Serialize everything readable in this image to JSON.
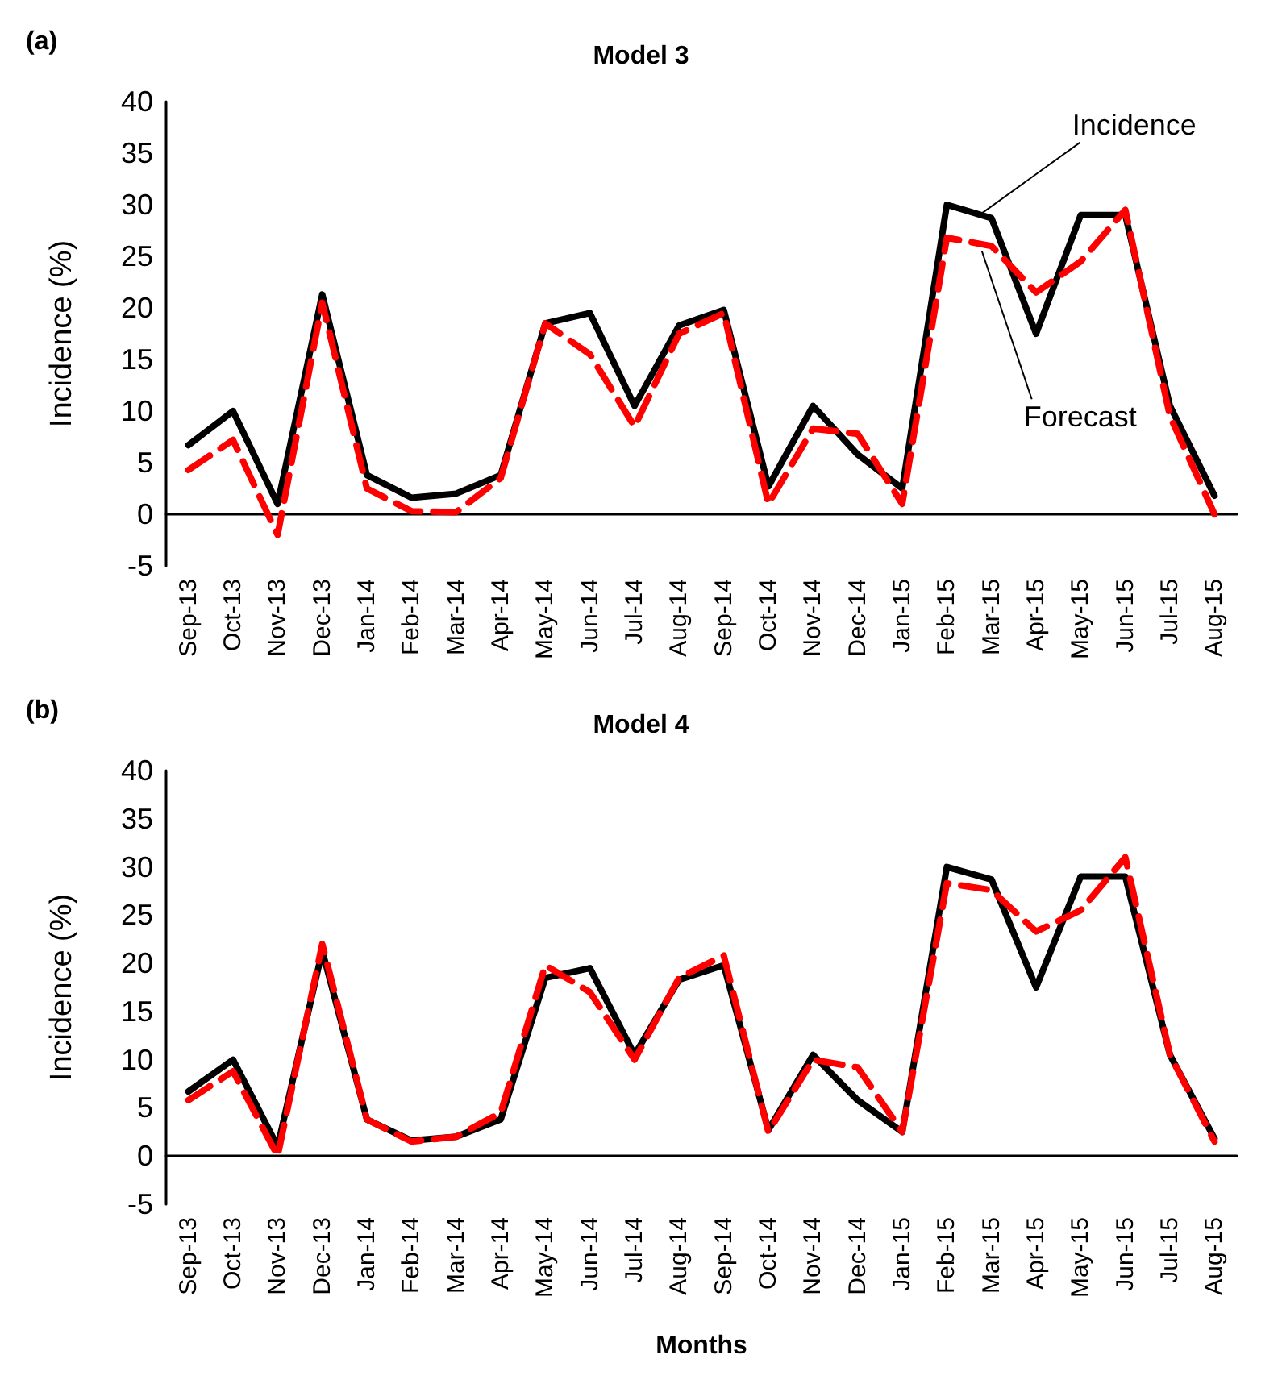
{
  "chart_data": [
    {
      "type": "line",
      "title": "Model 3",
      "ylabel": "Incidence (%)",
      "annotations": [
        "(a)",
        {
          "text": "Incidence",
          "x": "Mar-15",
          "y": 28.7
        },
        {
          "text": "Forecast",
          "x": "Mar-15",
          "y": 26
        }
      ],
      "categories": [
        "Sep-13",
        "Oct-13",
        "Nov-13",
        "Dec-13",
        "Jan-14",
        "Feb-14",
        "Mar-14",
        "Apr-14",
        "May-14",
        "Jun-14",
        "Jul-14",
        "Aug-14",
        "Sep-14",
        "Oct-14",
        "Nov-14",
        "Dec-14",
        "Jan-15",
        "Feb-15",
        "Mar-15",
        "Apr-15",
        "May-15",
        "Jun-15",
        "Jul-15",
        "Aug-15"
      ],
      "series": [
        {
          "color": "#000000",
          "line_style": "solid",
          "values": [
            6.7,
            10,
            1,
            21.3,
            3.8,
            1.6,
            2,
            3.8,
            18.5,
            19.5,
            10.5,
            18.3,
            19.8,
            2.7,
            10.5,
            5.8,
            2.5,
            30,
            28.7,
            17.5,
            29,
            29,
            10.5,
            1.8
          ]
        },
        {
          "color": "#ff0000",
          "line_style": "dashed",
          "values": [
            4.3,
            7.2,
            -2,
            20.5,
            2.5,
            0.3,
            0.2,
            3.5,
            18.5,
            15.5,
            8.5,
            17.5,
            19.5,
            1,
            8.3,
            7.8,
            1,
            26.8,
            26,
            21.5,
            24.5,
            29.5,
            9.5,
            0
          ]
        }
      ],
      "ylim": [
        -5,
        40
      ],
      "yticks": [
        -5,
        0,
        5,
        10,
        15,
        20,
        25,
        30,
        35,
        40
      ],
      "marker": "none"
    },
    {
      "type": "line",
      "title": "Model 4",
      "ylabel": "Incidence (%)",
      "xlabel": "Months",
      "annotations": [
        "(b)"
      ],
      "categories": [
        "Sep-13",
        "Oct-13",
        "Nov-13",
        "Dec-13",
        "Jan-14",
        "Feb-14",
        "Mar-14",
        "Apr-14",
        "May-14",
        "Jun-14",
        "Jul-14",
        "Aug-14",
        "Sep-14",
        "Oct-14",
        "Nov-14",
        "Dec-14",
        "Jan-15",
        "Feb-15",
        "Mar-15",
        "Apr-15",
        "May-15",
        "Jun-15",
        "Jul-15",
        "Aug-15"
      ],
      "series": [
        {
          "color": "#000000",
          "line_style": "solid",
          "values": [
            6.7,
            10,
            1,
            21.3,
            3.8,
            1.6,
            2,
            3.8,
            18.5,
            19.5,
            10.5,
            18.3,
            19.8,
            2.7,
            10.5,
            5.8,
            2.5,
            30,
            28.7,
            17.5,
            29,
            29,
            10.5,
            1.8
          ]
        },
        {
          "color": "#ff0000",
          "line_style": "dashed",
          "values": [
            5.8,
            8.8,
            0,
            22,
            3.8,
            1.5,
            2,
            4.5,
            19.8,
            17,
            10,
            18.5,
            20.8,
            2.5,
            10,
            9.2,
            2.5,
            28.3,
            27.6,
            23.3,
            25.5,
            31,
            10.5,
            1.5
          ]
        }
      ],
      "ylim": [
        -5,
        40
      ],
      "yticks": [
        -5,
        0,
        5,
        10,
        15,
        20,
        25,
        30,
        35,
        40
      ],
      "marker": "none"
    }
  ]
}
